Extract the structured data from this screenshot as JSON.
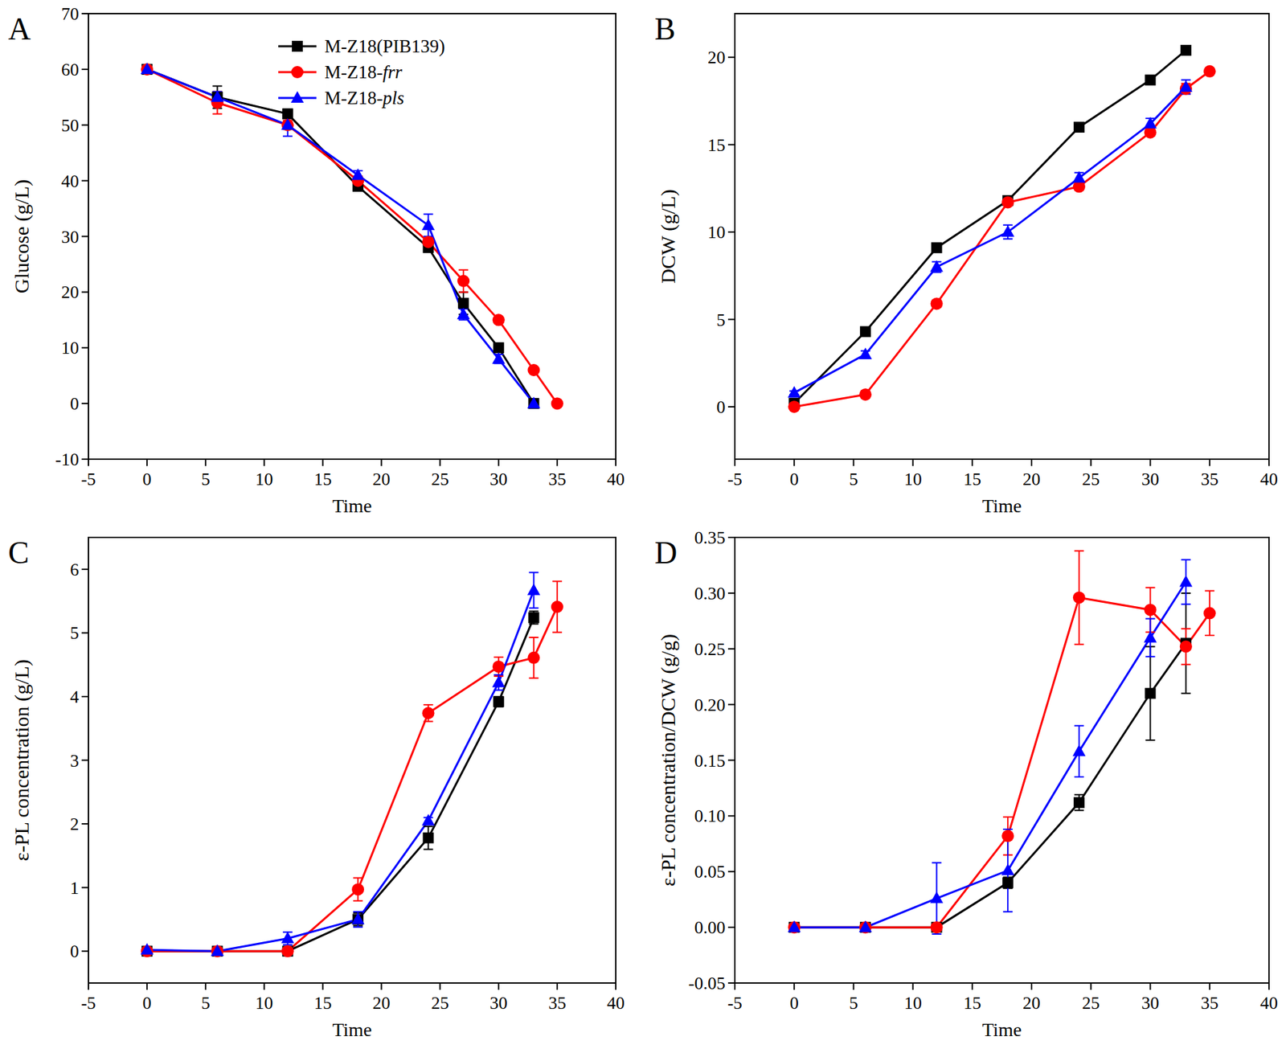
{
  "chart_data": [
    {
      "type": "line",
      "title": "A",
      "x_label": "Time",
      "y_label": "Glucose (g/L)",
      "xlim": [
        -5,
        40
      ],
      "xticks": [
        -5,
        0,
        5,
        10,
        15,
        20,
        25,
        30,
        35,
        40
      ],
      "ylim": [
        -10,
        70
      ],
      "yticks": [
        -10,
        0,
        10,
        20,
        30,
        40,
        50,
        60,
        70
      ],
      "legend": "upper center",
      "series": [
        {
          "name": "M-Z18(PIB139)",
          "color": "#000000",
          "marker": "square",
          "x": [
            0,
            6,
            12,
            18,
            24,
            27,
            30,
            33
          ],
          "values": [
            60,
            55,
            52,
            39,
            28,
            18,
            10,
            0
          ],
          "errors": [
            0.8,
            2,
            0.8,
            0.8,
            0.8,
            2,
            0.8,
            0.5
          ]
        },
        {
          "name": "M-Z18-frr",
          "color": "#ff0000",
          "marker": "circle",
          "x": [
            0,
            6,
            12,
            18,
            24,
            27,
            30,
            33,
            35
          ],
          "values": [
            60,
            54,
            50,
            40,
            29,
            22,
            15,
            6,
            0
          ],
          "errors": [
            0.8,
            2,
            0.8,
            0.8,
            0.8,
            2,
            0.5,
            0.5,
            0.3
          ]
        },
        {
          "name": "M-Z18-pls",
          "color": "#0000ff",
          "marker": "triangle",
          "x": [
            0,
            6,
            12,
            18,
            24,
            27,
            30,
            33
          ],
          "values": [
            60,
            55,
            50,
            41,
            32,
            16,
            8,
            0
          ],
          "errors": [
            0.8,
            1,
            2,
            0.8,
            2,
            1,
            0.8,
            0.5
          ]
        }
      ]
    },
    {
      "type": "line",
      "title": "B",
      "x_label": "Time",
      "y_label": "DCW (g/L)",
      "xlim": [
        -5,
        40
      ],
      "xticks": [
        -5,
        0,
        5,
        10,
        15,
        20,
        25,
        30,
        35,
        40
      ],
      "ylim": [
        -3,
        22.5
      ],
      "yticks": [
        0,
        5,
        10,
        15,
        20
      ],
      "series": [
        {
          "color": "#000000",
          "marker": "square",
          "x": [
            0,
            6,
            12,
            18,
            24,
            30,
            33
          ],
          "values": [
            0.2,
            4.3,
            9.1,
            11.8,
            16.0,
            18.7,
            20.4
          ],
          "errors": [
            0.1,
            0.1,
            0.1,
            0.1,
            0.1,
            0.1,
            0.1
          ]
        },
        {
          "color": "#ff0000",
          "marker": "circle",
          "x": [
            0,
            6,
            12,
            18,
            24,
            30,
            33,
            35
          ],
          "values": [
            0,
            0.7,
            5.9,
            11.7,
            12.6,
            15.7,
            18.2,
            19.2
          ],
          "errors": [
            0.1,
            0.2,
            0.2,
            0.1,
            0.2,
            0.2,
            0.3,
            0.1
          ]
        },
        {
          "color": "#0000ff",
          "marker": "triangle",
          "x": [
            0,
            6,
            12,
            18,
            24,
            30,
            33
          ],
          "values": [
            0.8,
            3.0,
            8.0,
            10.0,
            13.1,
            16.2,
            18.3
          ],
          "errors": [
            0.1,
            0.2,
            0.3,
            0.4,
            0.3,
            0.3,
            0.4
          ]
        }
      ]
    },
    {
      "type": "line",
      "title": "C",
      "x_label": "Time",
      "y_label": "ε-PL concentration (g/L)",
      "xlim": [
        -5,
        40
      ],
      "xticks": [
        -5,
        0,
        5,
        10,
        15,
        20,
        25,
        30,
        35,
        40
      ],
      "ylim": [
        -0.5,
        6.5
      ],
      "yticks": [
        0,
        1,
        2,
        3,
        4,
        5,
        6
      ],
      "series": [
        {
          "color": "#000000",
          "marker": "square",
          "x": [
            0,
            6,
            12,
            18,
            24,
            30,
            33
          ],
          "values": [
            0,
            0,
            0,
            0.5,
            1.78,
            3.92,
            5.24
          ],
          "errors": [
            0,
            0,
            0,
            0.1,
            0.18,
            0.08,
            0.1
          ]
        },
        {
          "color": "#ff0000",
          "marker": "circle",
          "x": [
            0,
            6,
            12,
            18,
            24,
            30,
            33,
            35
          ],
          "values": [
            0,
            0,
            0,
            0.97,
            3.74,
            4.47,
            4.61,
            5.41
          ],
          "errors": [
            0,
            0,
            0,
            0.18,
            0.13,
            0.15,
            0.32,
            0.4
          ]
        },
        {
          "color": "#0000ff",
          "marker": "triangle",
          "x": [
            0,
            6,
            12,
            18,
            24,
            30,
            33
          ],
          "values": [
            0.02,
            0,
            0.2,
            0.5,
            2.05,
            4.22,
            5.67
          ],
          "errors": [
            0,
            0,
            0.1,
            0.12,
            0.05,
            0.12,
            0.28
          ]
        }
      ]
    },
    {
      "type": "line",
      "title": "D",
      "x_label": "Time",
      "y_label": "ε-PL concentration/DCW (g/g)",
      "xlim": [
        -5,
        40
      ],
      "xticks": [
        -5,
        0,
        5,
        10,
        15,
        20,
        25,
        30,
        35,
        40
      ],
      "ylim": [
        -0.05,
        0.35
      ],
      "yticks": [
        {
          "value": -0.05,
          "label": "-0.05"
        },
        {
          "value": 0,
          "label": "0.00"
        },
        {
          "value": 0.05,
          "label": "0.05"
        },
        {
          "value": 0.1,
          "label": "0.10"
        },
        {
          "value": 0.15,
          "label": "0.15"
        },
        {
          "value": 0.2,
          "label": "0.20"
        },
        {
          "value": 0.25,
          "label": "0.25"
        },
        {
          "value": 0.3,
          "label": "0.30"
        },
        {
          "value": 0.35,
          "label": "0.35"
        }
      ],
      "series": [
        {
          "color": "#000000",
          "marker": "square",
          "x": [
            0,
            6,
            12,
            18,
            24,
            30,
            33
          ],
          "values": [
            0,
            0,
            0,
            0.04,
            0.112,
            0.21,
            0.255
          ],
          "errors": [
            0,
            0,
            0,
            0.005,
            0.007,
            0.042,
            0.045
          ]
        },
        {
          "color": "#ff0000",
          "marker": "circle",
          "x": [
            0,
            6,
            12,
            18,
            24,
            30,
            33,
            35
          ],
          "values": [
            0,
            0,
            0,
            0.082,
            0.296,
            0.285,
            0.252,
            0.282
          ],
          "errors": [
            0,
            0,
            0,
            0.017,
            0.042,
            0.02,
            0.016,
            0.02
          ]
        },
        {
          "color": "#0000ff",
          "marker": "triangle",
          "x": [
            0,
            6,
            12,
            18,
            24,
            30,
            33
          ],
          "values": [
            0,
            0,
            0.026,
            0.051,
            0.158,
            0.26,
            0.31
          ],
          "errors": [
            0,
            0,
            0.032,
            0.037,
            0.023,
            0.017,
            0.02
          ]
        }
      ]
    }
  ]
}
